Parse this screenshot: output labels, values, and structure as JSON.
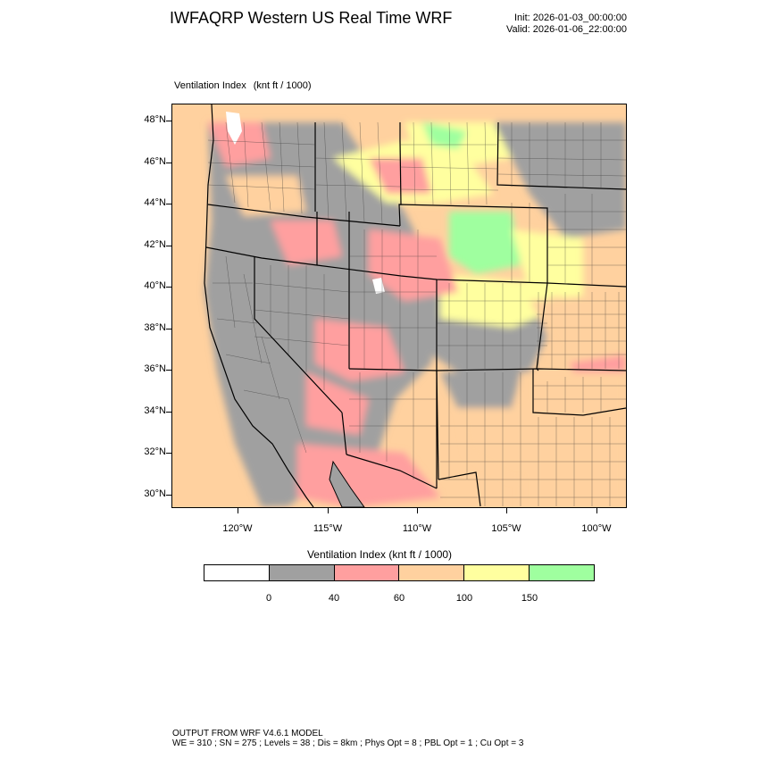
{
  "header": {
    "title": "IWFAQRP Western US Real Time WRF",
    "init": "Init: 2026-01-03_00:00:00",
    "valid": "Valid: 2026-01-06_22:00:00"
  },
  "map": {
    "subtitle": "Ventilation Index",
    "units": "(knt ft / 1000)",
    "lat_labels": [
      "48°N",
      "46°N",
      "44°N",
      "42°N",
      "40°N",
      "38°N",
      "36°N",
      "34°N",
      "32°N",
      "30°N"
    ],
    "lon_labels": [
      "120°W",
      "115°W",
      "110°W",
      "105°W",
      "100°W"
    ],
    "colors": {
      "water": "#ffffff",
      "border": "#000000",
      "county": "#333333"
    }
  },
  "colorbar": {
    "title": "Ventilation Index   (knt ft / 1000)",
    "colors": [
      "#ffffff",
      "#a0a0a0",
      "#ff9f9f",
      "#ffd19f",
      "#ffff9f",
      "#9fff9f"
    ],
    "labels": [
      "0",
      "40",
      "60",
      "100",
      "150"
    ]
  },
  "footer": {
    "line1": "OUTPUT FROM WRF V4.6.1 MODEL",
    "line2": "WE = 310 ; SN = 275 ; Levels = 38 ; Dis = 8km ; Phys Opt = 8 ; PBL Opt = 1 ; Cu Opt = 3"
  }
}
